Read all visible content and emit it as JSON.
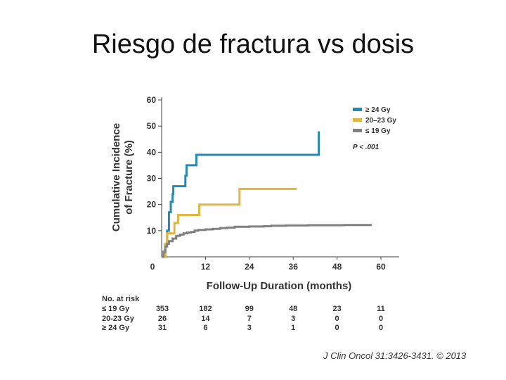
{
  "slide": {
    "title": "Riesgo de fractura vs dosis",
    "citation": "J Clin Oncol 31:3426-3431. © 2013"
  },
  "chart_data": {
    "type": "line",
    "step": true,
    "title": "",
    "xlabel": "Follow-Up Duration (months)",
    "ylabel": "Cumulative Incidence of Fracture (%)",
    "xlim": [
      0,
      65
    ],
    "ylim": [
      0,
      60
    ],
    "xticks": [
      0,
      12,
      24,
      36,
      48,
      60
    ],
    "yticks": [
      10,
      20,
      30,
      40,
      50,
      60
    ],
    "legend_position": "top-right",
    "annotation": "P < .001",
    "series": [
      {
        "name": "≥ 24 Gy",
        "color": "#2a87ad",
        "points": [
          [
            0,
            0
          ],
          [
            1,
            5
          ],
          [
            1.5,
            10
          ],
          [
            2,
            17
          ],
          [
            2.5,
            21
          ],
          [
            3,
            24
          ],
          [
            3.2,
            27
          ],
          [
            6,
            27
          ],
          [
            6.5,
            31
          ],
          [
            6.8,
            35
          ],
          [
            9,
            35
          ],
          [
            9.5,
            39
          ],
          [
            43,
            39
          ],
          [
            43,
            48
          ]
        ]
      },
      {
        "name": "20–23 Gy",
        "color": "#e0b640",
        "points": [
          [
            0,
            0
          ],
          [
            1,
            5
          ],
          [
            1.5,
            9
          ],
          [
            3,
            9
          ],
          [
            3.5,
            13
          ],
          [
            4,
            13
          ],
          [
            4.5,
            16
          ],
          [
            10,
            16
          ],
          [
            10.3,
            20
          ],
          [
            21,
            20
          ],
          [
            21.3,
            26
          ],
          [
            37,
            26
          ]
        ]
      },
      {
        "name": "≤ 19 Gy",
        "color": "#808080",
        "points": [
          [
            0,
            0
          ],
          [
            0.5,
            2
          ],
          [
            1,
            4
          ],
          [
            1.5,
            5
          ],
          [
            2,
            6
          ],
          [
            3,
            7
          ],
          [
            4,
            8
          ],
          [
            5,
            8.5
          ],
          [
            6,
            9
          ],
          [
            7,
            9.3
          ],
          [
            8,
            9.5
          ],
          [
            9,
            10
          ],
          [
            10,
            10.3
          ],
          [
            12,
            10.5
          ],
          [
            14,
            10.7
          ],
          [
            16,
            11
          ],
          [
            18,
            11.2
          ],
          [
            20,
            11.5
          ],
          [
            24,
            11.6
          ],
          [
            28,
            11.7
          ],
          [
            30,
            11.9
          ],
          [
            34,
            12
          ],
          [
            40,
            12.1
          ],
          [
            50,
            12.2
          ],
          [
            57.5,
            12.2
          ]
        ]
      }
    ],
    "risk_table": {
      "header": "No. at risk",
      "timepoints": [
        0,
        12,
        24,
        36,
        48,
        60
      ],
      "rows": [
        {
          "label": "≤ 19 Gy",
          "values": [
            "353",
            "182",
            "99",
            "48",
            "23",
            "11"
          ]
        },
        {
          "label": "20-23 Gy",
          "values": [
            "26",
            "14",
            "7",
            "3",
            "0",
            "0"
          ]
        },
        {
          "label": "≥ 24 Gy",
          "values": [
            "31",
            "6",
            "3",
            "1",
            "0",
            "0"
          ]
        }
      ]
    }
  }
}
